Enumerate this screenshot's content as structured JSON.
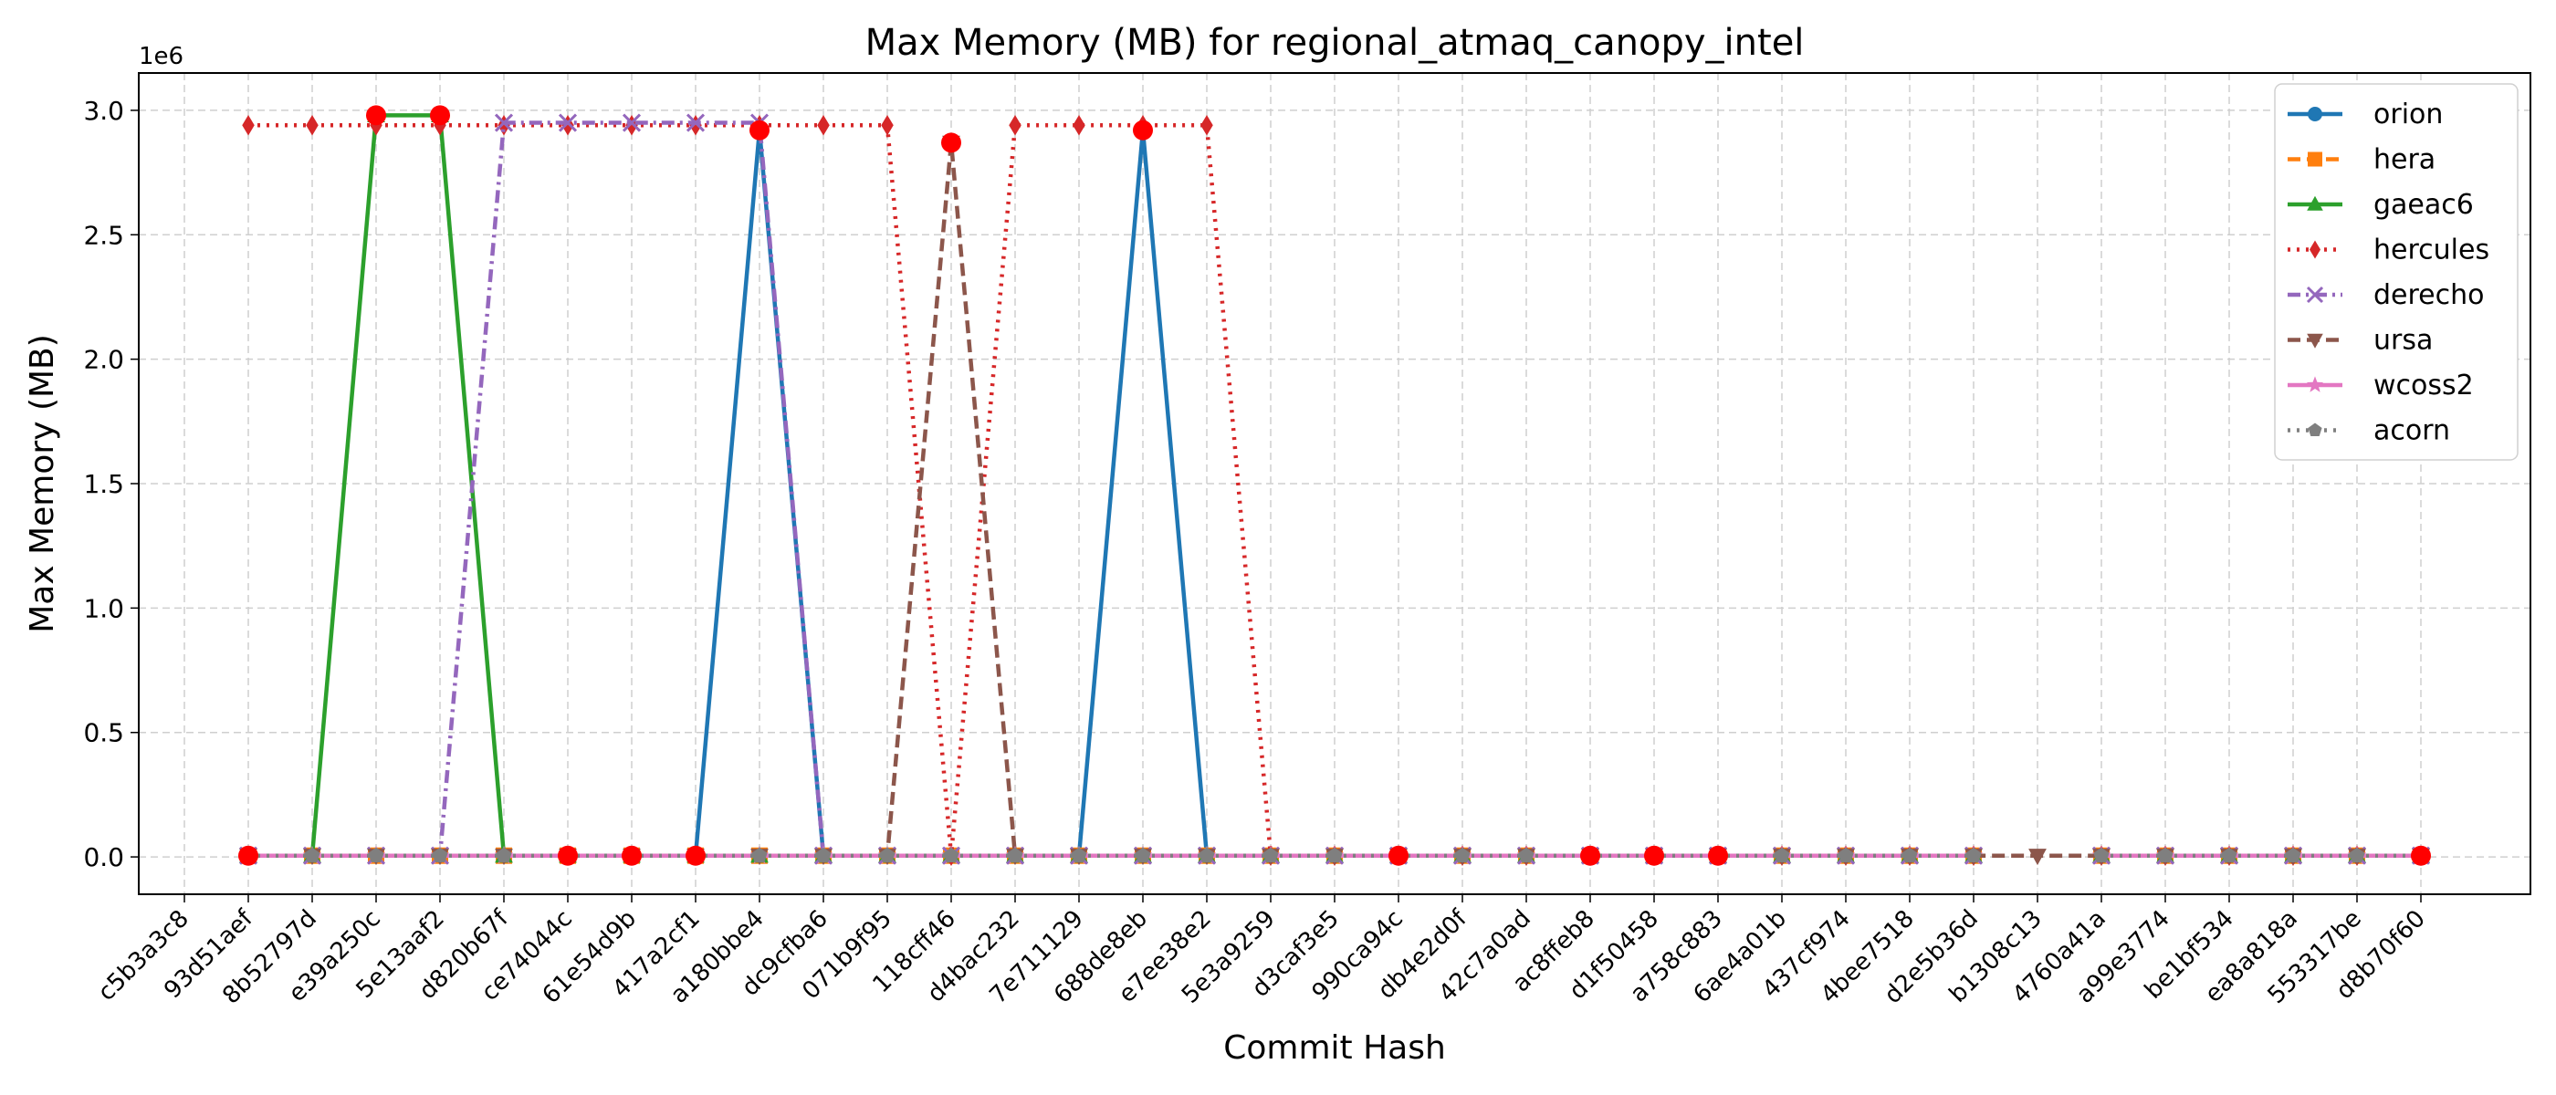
{
  "chart_data": {
    "type": "line",
    "title": "Max Memory (MB) for regional_atmaq_canopy_intel",
    "xlabel": "Commit Hash",
    "ylabel": "Max Memory (MB)",
    "y_offset_label": "1e6",
    "y_scale": 1000000,
    "ylim": [
      -150000,
      3150000
    ],
    "yticks": [
      0,
      500000,
      1000000,
      1500000,
      2000000,
      2500000,
      3000000
    ],
    "ytick_labels": [
      "0.0",
      "0.5",
      "1.0",
      "1.5",
      "2.0",
      "2.5",
      "3.0"
    ],
    "grid": true,
    "legend_position": "top-right",
    "categories": [
      "c5b3a3c8",
      "93d51aef",
      "8b52797d",
      "e39a250c",
      "5e13aaf2",
      "d820b67f",
      "ce74044c",
      "61e54d9b",
      "417a2cf1",
      "a180bbe4",
      "dc9cfba6",
      "071b9f95",
      "118cff46",
      "d4bac232",
      "7e711129",
      "688de8eb",
      "e7ee38e2",
      "5e3a9259",
      "d3caf3e5",
      "990ca94c",
      "db4e2d0f",
      "42c7a0ad",
      "ac8ffeb8",
      "d1f50458",
      "a758c883",
      "6ae4a01b",
      "437cf974",
      "4bee7518",
      "d2e5b36d",
      "b1308c13",
      "4760a41a",
      "a99e3774",
      "be1bf534",
      "ea8a818a",
      "553317be",
      "d8b70f60"
    ],
    "series": [
      {
        "name": "orion",
        "color": "#1f77b4",
        "marker": "circle",
        "dash": "solid",
        "values": [
          null,
          5000,
          5000,
          5000,
          5000,
          5000,
          5000,
          5000,
          5000,
          2920000,
          5000,
          5000,
          5000,
          5000,
          5000,
          2920000,
          5000,
          5000,
          5000,
          5000,
          5000,
          5000,
          5000,
          5000,
          5000,
          5000,
          5000,
          5000,
          5000,
          null,
          5000,
          5000,
          5000,
          5000,
          5000,
          5000
        ]
      },
      {
        "name": "hera",
        "color": "#ff7f0e",
        "marker": "square",
        "dash": "dashed",
        "values": [
          null,
          5000,
          5000,
          5000,
          5000,
          5000,
          5000,
          5000,
          5000,
          5000,
          5000,
          5000,
          5000,
          5000,
          5000,
          5000,
          5000,
          5000,
          5000,
          5000,
          5000,
          5000,
          5000,
          5000,
          5000,
          5000,
          5000,
          5000,
          5000,
          null,
          5000,
          5000,
          5000,
          5000,
          5000,
          5000
        ]
      },
      {
        "name": "gaeac6",
        "color": "#2ca02c",
        "marker": "triangle-up",
        "dash": "solid",
        "values": [
          null,
          5000,
          5000,
          2980000,
          2980000,
          5000,
          5000,
          5000,
          5000,
          5000,
          5000,
          5000,
          5000,
          5000,
          5000,
          5000,
          5000,
          5000,
          5000,
          5000,
          5000,
          5000,
          5000,
          5000,
          5000,
          5000,
          5000,
          5000,
          5000,
          null,
          5000,
          5000,
          5000,
          5000,
          5000,
          5000
        ]
      },
      {
        "name": "hercules",
        "color": "#d62728",
        "marker": "diamond",
        "dash": "dotted",
        "values": [
          null,
          2940000,
          2940000,
          2940000,
          2940000,
          2940000,
          2940000,
          2940000,
          2940000,
          2940000,
          2940000,
          2940000,
          5000,
          2940000,
          2940000,
          2940000,
          2940000,
          5000,
          5000,
          5000,
          5000,
          5000,
          5000,
          5000,
          5000,
          5000,
          5000,
          5000,
          5000,
          null,
          5000,
          5000,
          5000,
          5000,
          5000,
          5000
        ]
      },
      {
        "name": "derecho",
        "color": "#9467bd",
        "marker": "x",
        "dash": "dashdot",
        "values": [
          null,
          5000,
          5000,
          5000,
          5000,
          2950000,
          2950000,
          2950000,
          2950000,
          2950000,
          5000,
          5000,
          5000,
          5000,
          5000,
          5000,
          5000,
          5000,
          5000,
          5000,
          5000,
          5000,
          5000,
          5000,
          5000,
          5000,
          5000,
          5000,
          5000,
          null,
          5000,
          5000,
          5000,
          5000,
          5000,
          5000
        ]
      },
      {
        "name": "ursa",
        "color": "#8c564b",
        "marker": "triangle-down",
        "dash": "dashed",
        "values": [
          null,
          5000,
          5000,
          5000,
          5000,
          5000,
          5000,
          5000,
          5000,
          5000,
          5000,
          5000,
          2870000,
          5000,
          5000,
          5000,
          5000,
          5000,
          5000,
          5000,
          5000,
          5000,
          5000,
          5000,
          5000,
          5000,
          5000,
          5000,
          5000,
          5000,
          5000,
          5000,
          5000,
          5000,
          5000,
          5000
        ]
      },
      {
        "name": "wcoss2",
        "color": "#e377c2",
        "marker": "star",
        "dash": "solid",
        "values": [
          null,
          5000,
          5000,
          5000,
          5000,
          5000,
          5000,
          5000,
          5000,
          5000,
          5000,
          5000,
          5000,
          5000,
          5000,
          5000,
          5000,
          5000,
          5000,
          5000,
          5000,
          5000,
          5000,
          5000,
          5000,
          5000,
          5000,
          5000,
          5000,
          null,
          5000,
          5000,
          5000,
          5000,
          5000,
          5000
        ]
      },
      {
        "name": "acorn",
        "color": "#7f7f7f",
        "marker": "pentagon",
        "dash": "dotted",
        "values": [
          null,
          5000,
          5000,
          5000,
          5000,
          5000,
          5000,
          5000,
          5000,
          5000,
          5000,
          5000,
          5000,
          5000,
          5000,
          5000,
          5000,
          5000,
          5000,
          5000,
          5000,
          5000,
          5000,
          5000,
          5000,
          5000,
          5000,
          5000,
          5000,
          null,
          5000,
          5000,
          5000,
          5000,
          5000,
          5000
        ]
      }
    ],
    "highlight_color": "#ff0000",
    "highlights": [
      {
        "x": "93d51aef",
        "y": 5000
      },
      {
        "x": "e39a250c",
        "y": 2980000
      },
      {
        "x": "5e13aaf2",
        "y": 2980000
      },
      {
        "x": "ce74044c",
        "y": 5000
      },
      {
        "x": "61e54d9b",
        "y": 5000
      },
      {
        "x": "417a2cf1",
        "y": 5000
      },
      {
        "x": "a180bbe4",
        "y": 2920000
      },
      {
        "x": "118cff46",
        "y": 2870000
      },
      {
        "x": "688de8eb",
        "y": 2920000
      },
      {
        "x": "990ca94c",
        "y": 5000
      },
      {
        "x": "ac8ffeb8",
        "y": 5000
      },
      {
        "x": "d1f50458",
        "y": 5000
      },
      {
        "x": "a758c883",
        "y": 5000
      },
      {
        "x": "d8b70f60",
        "y": 5000
      }
    ]
  }
}
